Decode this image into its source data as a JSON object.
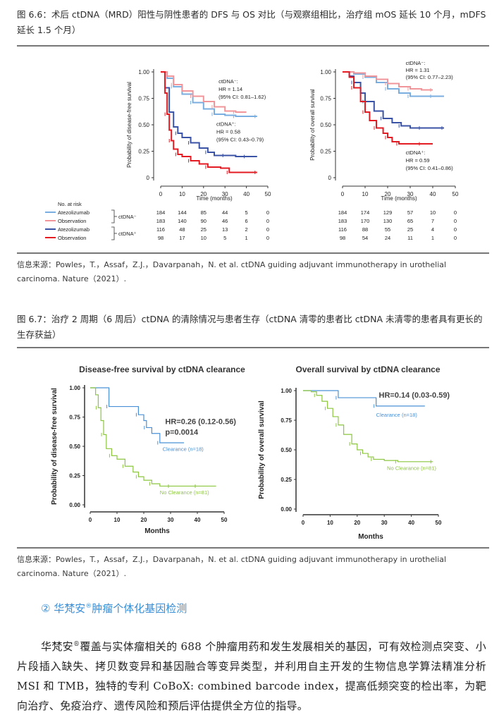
{
  "fig66": {
    "caption": "图 6.6：术后 ctDNA（MRD）阳性与阴性患者的 DFS 与 OS 对比（与观察组相比，治疗组 mOS 延长 10 个月，mDFS 延长 1.5 个月）",
    "source": "信息来源：Powles，T.，Assaf，Z.J.，Davarpanah，N. et al. ctDNA guiding adjuvant immunotherapy in urothelial carcinoma. Nature（2021）."
  },
  "fig67": {
    "caption": "图 6.7：治疗 2 周期（6 周后）ctDNA 的清除情况与患者生存（ctDNA 清零的患者比 ctDNA 未清零的患者具有更长的生存获益）",
    "source": "信息来源：Powles，T.，Assaf，Z.J.，Davarpanah，N. et al. ctDNA guiding adjuvant immunotherapy in urothelial carcinoma. Nature（2021）."
  },
  "section": {
    "heading": "② 华梵安",
    "reg": "®",
    "heading_rest": "肿瘤个体化基因检测"
  },
  "body": {
    "p1": "华梵安",
    "reg": "®",
    "p2": "覆盖与实体瘤相关的 688 个肿瘤用药和发生发展相关的基因，可有效检测点突变、小片段插入缺失、拷贝数变异和基因融合等变异类型，并利用自主开发的生物信息学算法精准分析 MSI 和 TMB，独特的专利 CoBoX: combined barcode index，提高低频突变的检出率，为靶向治疗、免疫治疗、遗传风险和预后评估提供全方位的指导。"
  },
  "colors": {
    "light_blue": "#7aaee0",
    "pink": "#f0969a",
    "dark_blue": "#3b53a4",
    "red": "#e31b23",
    "clear_blue": "#4a90d6",
    "green": "#8cc63f",
    "heading_blue": "#3a8ed6"
  },
  "chart_data": [
    {
      "type": "line",
      "title": "",
      "xlabel": "Time (months)",
      "ylabel": "Probability of disease-free survival",
      "xlim": [
        0,
        50
      ],
      "ylim": [
        0,
        1
      ],
      "x_ticks": [
        "0",
        "10",
        "20",
        "30",
        "40",
        "50"
      ],
      "y_ticks": [
        "0",
        "0.25",
        "0.50",
        "0.75",
        "1.00"
      ],
      "series": [
        {
          "name": "Atezolizumab",
          "group": "ctDNA⁻",
          "x": [
            0,
            3,
            6,
            10,
            15,
            20,
            25,
            30,
            35,
            40,
            45
          ],
          "y": [
            1.0,
            0.94,
            0.86,
            0.79,
            0.71,
            0.65,
            0.6,
            0.59,
            0.58,
            0.58,
            0.58
          ]
        },
        {
          "name": "Observation",
          "group": "ctDNA⁻",
          "x": [
            0,
            3,
            6,
            10,
            15,
            20,
            25,
            30,
            35,
            40
          ],
          "y": [
            1.0,
            0.96,
            0.88,
            0.82,
            0.77,
            0.72,
            0.67,
            0.63,
            0.62,
            0.62
          ]
        },
        {
          "name": "Atezolizumab",
          "group": "ctDNA⁺",
          "x": [
            0,
            2,
            4,
            6,
            8,
            10,
            14,
            18,
            22,
            25,
            30,
            35,
            40,
            45
          ],
          "y": [
            1.0,
            0.85,
            0.62,
            0.48,
            0.42,
            0.38,
            0.33,
            0.28,
            0.24,
            0.21,
            0.21,
            0.2,
            0.2,
            0.2
          ]
        },
        {
          "name": "Observation",
          "group": "ctDNA⁺",
          "x": [
            0,
            2,
            3,
            4,
            5,
            6,
            8,
            10,
            14,
            18,
            22,
            28,
            32,
            40,
            45
          ],
          "y": [
            1.0,
            0.8,
            0.6,
            0.45,
            0.35,
            0.27,
            0.22,
            0.2,
            0.16,
            0.13,
            0.1,
            0.09,
            0.05,
            0.05,
            0.05
          ]
        }
      ],
      "annotations": [
        {
          "lines": [
            "ctDNA⁻:",
            "HR = 1.14",
            "(95% CI: 0.81–1.62)"
          ]
        },
        {
          "lines": [
            "ctDNA⁺:",
            "HR = 0.58",
            "(95% CI: 0.43–0.79)"
          ]
        }
      ],
      "risk_table": {
        "header": "No. at risk",
        "rows": [
          {
            "label": "Atezolizumab",
            "group": "ctDNA⁻",
            "values": [
              "184",
              "144",
              "85",
              "44",
              "5",
              "0"
            ]
          },
          {
            "label": "Observation",
            "group": "ctDNA⁻",
            "values": [
              "183",
              "140",
              "90",
              "46",
              "6",
              "0"
            ]
          },
          {
            "label": "Atezolizumab",
            "group": "ctDNA⁺",
            "values": [
              "116",
              "48",
              "25",
              "13",
              "2",
              "0"
            ]
          },
          {
            "label": "Observation",
            "group": "ctDNA⁺",
            "values": [
              "98",
              "17",
              "10",
              "5",
              "1",
              "0"
            ]
          }
        ]
      }
    },
    {
      "type": "line",
      "title": "",
      "xlabel": "Time (months)",
      "ylabel": "Probability of overall survival",
      "xlim": [
        0,
        50
      ],
      "ylim": [
        0,
        1
      ],
      "x_ticks": [
        "0",
        "10",
        "20",
        "30",
        "40",
        "50"
      ],
      "y_ticks": [
        "0",
        "0.25",
        "0.50",
        "0.75",
        "1.00"
      ],
      "series": [
        {
          "name": "Atezolizumab",
          "group": "ctDNA⁻",
          "x": [
            0,
            5,
            10,
            15,
            20,
            25,
            30,
            35,
            40,
            45
          ],
          "y": [
            1.0,
            0.98,
            0.95,
            0.9,
            0.84,
            0.8,
            0.77,
            0.77,
            0.77,
            0.77
          ]
        },
        {
          "name": "Observation",
          "group": "ctDNA⁻",
          "x": [
            0,
            5,
            10,
            15,
            20,
            25,
            30,
            35,
            40
          ],
          "y": [
            1.0,
            0.99,
            0.96,
            0.93,
            0.89,
            0.86,
            0.84,
            0.83,
            0.83
          ]
        },
        {
          "name": "Atezolizumab",
          "group": "ctDNA⁺",
          "x": [
            0,
            3,
            5,
            8,
            10,
            14,
            18,
            22,
            26,
            30,
            35,
            40,
            45
          ],
          "y": [
            1.0,
            0.96,
            0.9,
            0.8,
            0.72,
            0.63,
            0.56,
            0.52,
            0.49,
            0.47,
            0.47,
            0.47,
            0.47
          ]
        },
        {
          "name": "Observation",
          "group": "ctDNA⁺",
          "x": [
            0,
            3,
            5,
            8,
            10,
            12,
            15,
            18,
            20,
            22,
            25,
            30,
            35,
            40
          ],
          "y": [
            1.0,
            0.95,
            0.85,
            0.72,
            0.62,
            0.54,
            0.47,
            0.42,
            0.38,
            0.34,
            0.32,
            0.32,
            0.32,
            0.32
          ]
        }
      ],
      "annotations": [
        {
          "lines": [
            "ctDNA⁻:",
            "HR = 1.31",
            "(95% CI: 0.77–2.23)"
          ]
        },
        {
          "lines": [
            "ctDNA⁺:",
            "HR = 0.59",
            "(95% CI: 0.41–0.86)"
          ]
        }
      ],
      "risk_table": {
        "rows": [
          {
            "values": [
              "184",
              "174",
              "129",
              "57",
              "10",
              "0"
            ]
          },
          {
            "values": [
              "183",
              "170",
              "130",
              "65",
              "7",
              "0"
            ]
          },
          {
            "values": [
              "116",
              "88",
              "55",
              "25",
              "4",
              "0"
            ]
          },
          {
            "values": [
              "98",
              "54",
              "24",
              "11",
              "1",
              "0"
            ]
          }
        ]
      }
    },
    {
      "type": "line",
      "title": "Disease-free survival by ctDNA clearance",
      "xlabel": "Months",
      "ylabel": "Probability of disease-free survival",
      "xlim": [
        0,
        50
      ],
      "ylim": [
        0,
        1
      ],
      "x_ticks": [
        "0",
        "10",
        "20",
        "30",
        "40",
        "50"
      ],
      "y_ticks": [
        "0.00",
        "0.25",
        "0.50",
        "0.75",
        "1.00"
      ],
      "series": [
        {
          "name": "Clearance (n=18)",
          "x": [
            0,
            6,
            7,
            17,
            18,
            20,
            21,
            23,
            26,
            35
          ],
          "y": [
            1.0,
            1.0,
            0.84,
            0.84,
            0.77,
            0.72,
            0.66,
            0.61,
            0.53,
            0.53
          ]
        },
        {
          "name": "No Clearance (n=81)",
          "x": [
            0,
            2,
            3,
            4,
            5,
            6,
            8,
            10,
            13,
            16,
            18,
            20,
            23,
            26,
            30,
            35,
            40,
            47
          ],
          "y": [
            1.0,
            0.94,
            0.83,
            0.72,
            0.6,
            0.48,
            0.42,
            0.39,
            0.33,
            0.28,
            0.24,
            0.21,
            0.18,
            0.16,
            0.16,
            0.16,
            0.16,
            0.16
          ]
        }
      ],
      "annotations": [
        {
          "lines": [
            "HR=0.26 (0.12-0.56)",
            "p=0.0014"
          ]
        }
      ]
    },
    {
      "type": "line",
      "title": "Overall survival by ctDNA clearance",
      "xlabel": "Months",
      "ylabel": "Probability of overall survival",
      "xlim": [
        0,
        50
      ],
      "ylim": [
        0,
        1
      ],
      "x_ticks": [
        "0",
        "10",
        "20",
        "30",
        "40",
        "50"
      ],
      "y_ticks": [
        "0.00",
        "0.25",
        "0.50",
        "0.75",
        "1.00"
      ],
      "series": [
        {
          "name": "Clearance (n=18)",
          "x": [
            0,
            12,
            13,
            26,
            27,
            45
          ],
          "y": [
            1.0,
            1.0,
            0.94,
            0.94,
            0.87,
            0.87
          ]
        },
        {
          "name": "No Clearance (n=81)",
          "x": [
            0,
            3,
            5,
            7,
            9,
            11,
            13,
            15,
            18,
            20,
            22,
            24,
            26,
            30,
            35,
            40,
            48
          ],
          "y": [
            1.0,
            0.99,
            0.96,
            0.91,
            0.85,
            0.78,
            0.71,
            0.63,
            0.55,
            0.5,
            0.47,
            0.44,
            0.42,
            0.41,
            0.4,
            0.4,
            0.4
          ]
        }
      ],
      "annotations": [
        {
          "lines": [
            "HR=0.14 (0.03-0.59)"
          ]
        }
      ]
    }
  ]
}
